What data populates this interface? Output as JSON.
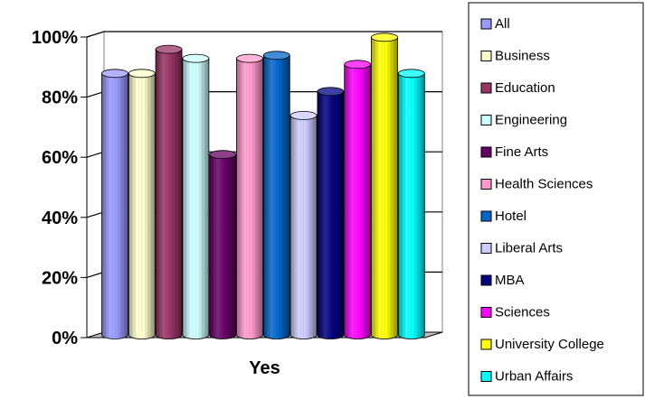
{
  "chart_data": {
    "type": "bar",
    "style": "3d-cylinder",
    "categories": [
      "Yes"
    ],
    "y_ticks": [
      "0%",
      "20%",
      "40%",
      "60%",
      "80%",
      "100%"
    ],
    "ylim": [
      0,
      100
    ],
    "grid": true,
    "legend_position": "right",
    "series": [
      {
        "name": "All",
        "values": [
          87
        ],
        "color": "#9999ff"
      },
      {
        "name": "Business",
        "values": [
          87
        ],
        "color": "#ffffcc"
      },
      {
        "name": "Education",
        "values": [
          95
        ],
        "color": "#993366"
      },
      {
        "name": "Engineering",
        "values": [
          92
        ],
        "color": "#ccffff"
      },
      {
        "name": "Fine Arts",
        "values": [
          60
        ],
        "color": "#660066"
      },
      {
        "name": "Health Sciences",
        "values": [
          92
        ],
        "color": "#ff99cc"
      },
      {
        "name": "Hotel",
        "values": [
          93
        ],
        "color": "#0066cc"
      },
      {
        "name": "Liberal Arts",
        "values": [
          73
        ],
        "color": "#ccccff"
      },
      {
        "name": "MBA",
        "values": [
          81
        ],
        "color": "#000080"
      },
      {
        "name": "Sciences",
        "values": [
          90
        ],
        "color": "#ff00ff"
      },
      {
        "name": "University College",
        "values": [
          99
        ],
        "color": "#ffff00"
      },
      {
        "name": "Urban Affairs",
        "values": [
          87
        ],
        "color": "#00ffff"
      }
    ]
  }
}
